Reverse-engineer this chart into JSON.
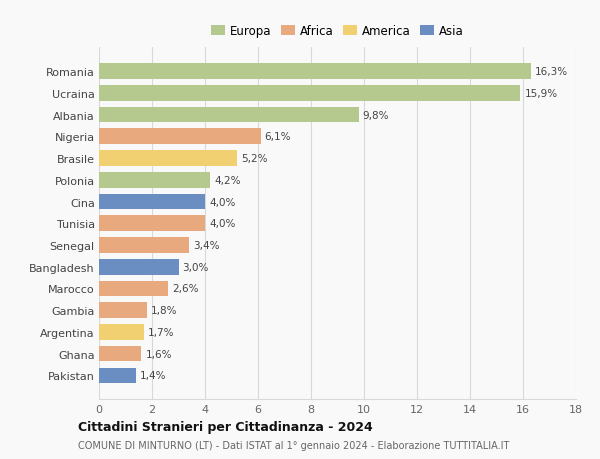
{
  "countries": [
    "Romania",
    "Ucraina",
    "Albania",
    "Nigeria",
    "Brasile",
    "Polonia",
    "Cina",
    "Tunisia",
    "Senegal",
    "Bangladesh",
    "Marocco",
    "Gambia",
    "Argentina",
    "Ghana",
    "Pakistan"
  ],
  "values": [
    16.3,
    15.9,
    9.8,
    6.1,
    5.2,
    4.2,
    4.0,
    4.0,
    3.4,
    3.0,
    2.6,
    1.8,
    1.7,
    1.6,
    1.4
  ],
  "continents": [
    "Europa",
    "Europa",
    "Europa",
    "Africa",
    "America",
    "Europa",
    "Asia",
    "Africa",
    "Africa",
    "Asia",
    "Africa",
    "Africa",
    "America",
    "Africa",
    "Asia"
  ],
  "colors": {
    "Europa": "#b5c98e",
    "Africa": "#e8a97e",
    "America": "#f0d070",
    "Asia": "#6b8ec2"
  },
  "xlim": [
    0,
    18
  ],
  "xticks": [
    0,
    2,
    4,
    6,
    8,
    10,
    12,
    14,
    16,
    18
  ],
  "title": "Cittadini Stranieri per Cittadinanza - 2024",
  "subtitle": "COMUNE DI MINTURNO (LT) - Dati ISTAT al 1° gennaio 2024 - Elaborazione TUTTITALIA.IT",
  "background_color": "#f9f9f9",
  "grid_color": "#d8d8d8",
  "bar_height": 0.72,
  "legend_order": [
    "Europa",
    "Africa",
    "America",
    "Asia"
  ]
}
